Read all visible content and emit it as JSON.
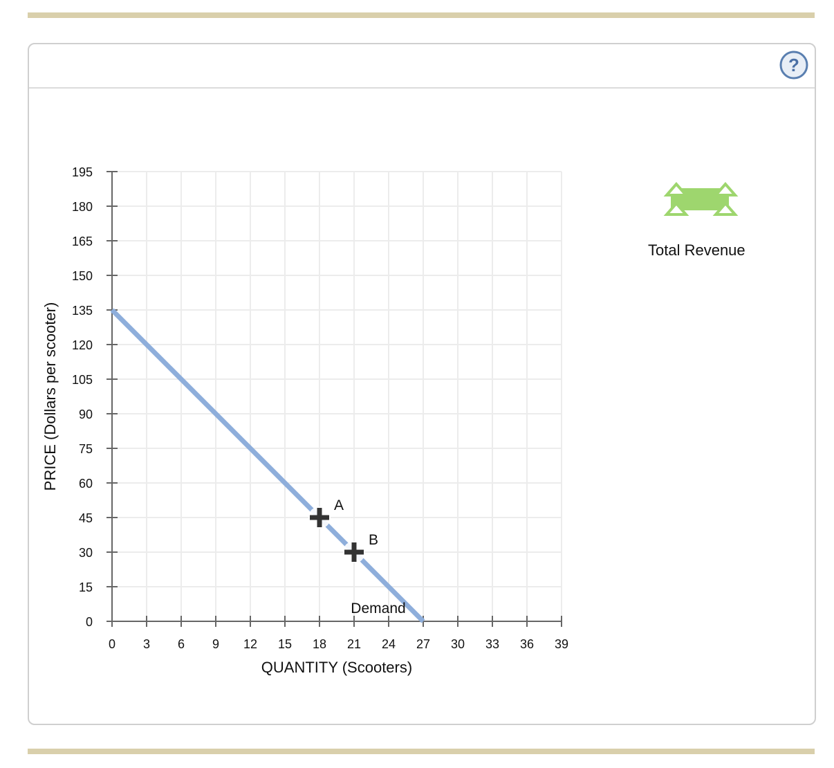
{
  "header": {
    "help_icon": "question-circle-icon",
    "help_label": "?"
  },
  "legend": {
    "tool_label": "Total Revenue",
    "tool_icon": "green-area-tool-icon",
    "tool_color": "#9ed66e"
  },
  "colors": {
    "demand": "#8eaedb",
    "point": "#333333",
    "grid": "#ececec",
    "axis": "#666666",
    "bar": "#d9cfab"
  },
  "chart_data": {
    "type": "line",
    "title": "",
    "xlabel": "QUANTITY (Scooters)",
    "ylabel": "PRICE (Dollars per scooter)",
    "xlim": [
      0,
      39
    ],
    "ylim": [
      0,
      195
    ],
    "x_ticks": [
      0,
      3,
      6,
      9,
      12,
      15,
      18,
      21,
      24,
      27,
      30,
      33,
      36,
      39
    ],
    "y_ticks": [
      0,
      15,
      30,
      45,
      60,
      75,
      90,
      105,
      120,
      135,
      150,
      165,
      180,
      195
    ],
    "grid": true,
    "series": [
      {
        "name": "Demand",
        "x": [
          0,
          27
        ],
        "y": [
          135,
          0
        ],
        "color": "#8eaedb"
      }
    ],
    "points": [
      {
        "label": "A",
        "x": 18,
        "y": 45
      },
      {
        "label": "B",
        "x": 21,
        "y": 30
      }
    ],
    "annotations": [
      {
        "text": "Demand",
        "x": 24,
        "y": 1
      }
    ],
    "legend": [
      "Total Revenue"
    ]
  }
}
